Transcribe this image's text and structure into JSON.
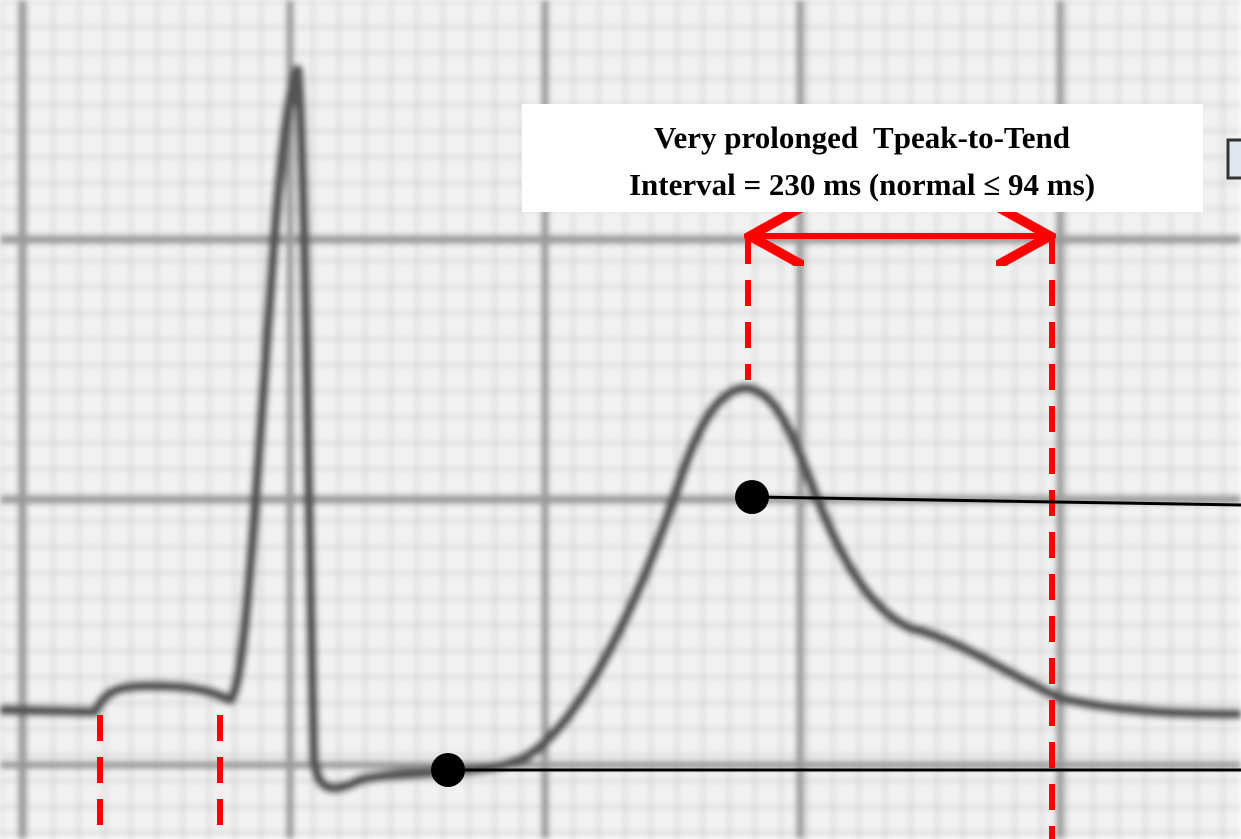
{
  "annotation": {
    "lines": [
      "Very prolonged  Tpeak-to-Tend",
      "Interval = 230 ms (normal ≤ 94 ms)"
    ]
  }
}
